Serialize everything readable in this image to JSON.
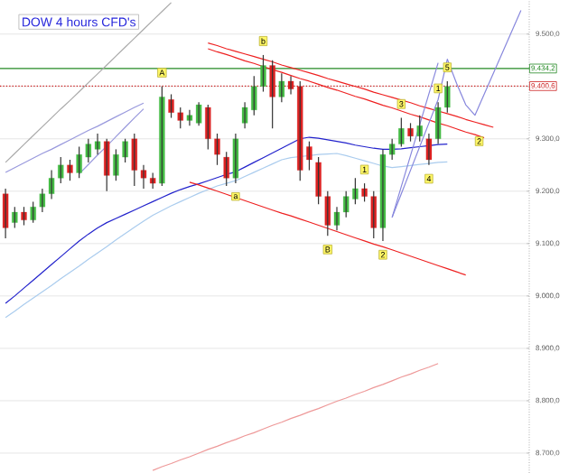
{
  "chart_data": {
    "type": "candlestick",
    "title": "DOW 4 hours CFD's",
    "categories": [
      null,
      null,
      null,
      null,
      null,
      null,
      null,
      null,
      null,
      null,
      null,
      null,
      null,
      null,
      null,
      null,
      null,
      null,
      null,
      null,
      null,
      null,
      null,
      null,
      null,
      null,
      null,
      null,
      null,
      null,
      null,
      null,
      null,
      null,
      null,
      null,
      null,
      null,
      null,
      null,
      null,
      null,
      null,
      null,
      null,
      null,
      null,
      null,
      null,
      null,
      null,
      null,
      null,
      null,
      null,
      null,
      null
    ],
    "ohlc": [
      [
        9195,
        9205,
        9110,
        9130
      ],
      [
        9140,
        9170,
        9130,
        9160
      ],
      [
        9160,
        9170,
        9135,
        9145
      ],
      [
        9145,
        9180,
        9140,
        9170
      ],
      [
        9170,
        9205,
        9160,
        9195
      ],
      [
        9195,
        9240,
        9185,
        9225
      ],
      [
        9225,
        9265,
        9215,
        9250
      ],
      [
        9250,
        9260,
        9220,
        9235
      ],
      [
        9235,
        9285,
        9225,
        9270
      ],
      [
        9265,
        9300,
        9255,
        9290
      ],
      [
        9280,
        9310,
        9270,
        9295
      ],
      [
        9295,
        9300,
        9200,
        9230
      ],
      [
        9230,
        9280,
        9220,
        9270
      ],
      [
        9265,
        9300,
        9255,
        9295
      ],
      [
        9300,
        9310,
        9210,
        9240
      ],
      [
        9240,
        9250,
        9205,
        9225
      ],
      [
        9225,
        9235,
        9205,
        9215
      ],
      [
        9215,
        9400,
        9210,
        9380
      ],
      [
        9375,
        9385,
        9340,
        9350
      ],
      [
        9350,
        9360,
        9320,
        9335
      ],
      [
        9335,
        9355,
        9325,
        9345
      ],
      [
        9330,
        9370,
        9325,
        9365
      ],
      [
        9360,
        9365,
        9280,
        9300
      ],
      [
        9300,
        9310,
        9250,
        9270
      ],
      [
        9265,
        9275,
        9210,
        9225
      ],
      [
        9225,
        9310,
        9215,
        9300
      ],
      [
        9330,
        9370,
        9320,
        9360
      ],
      [
        9355,
        9420,
        9345,
        9400
      ],
      [
        9400,
        9460,
        9390,
        9440
      ],
      [
        9440,
        9450,
        9320,
        9380
      ],
      [
        9380,
        9425,
        9370,
        9410
      ],
      [
        9410,
        9420,
        9385,
        9395
      ],
      [
        9400,
        9410,
        9220,
        9240
      ],
      [
        9285,
        9295,
        9240,
        9260
      ],
      [
        9255,
        9265,
        9175,
        9190
      ],
      [
        9190,
        9200,
        9115,
        9135
      ],
      [
        9135,
        9170,
        9125,
        9160
      ],
      [
        9160,
        9200,
        9150,
        9190
      ],
      [
        9185,
        9225,
        9175,
        9205
      ],
      [
        9205,
        9215,
        9180,
        9190
      ],
      [
        9190,
        9200,
        9110,
        9130
      ],
      [
        9130,
        9280,
        9105,
        9270
      ],
      [
        9270,
        9300,
        9260,
        9290
      ],
      [
        9290,
        9340,
        9285,
        9320
      ],
      [
        9320,
        9330,
        9295,
        9305
      ],
      [
        9305,
        9345,
        9295,
        9325
      ],
      [
        9300,
        9310,
        9250,
        9260
      ],
      [
        9300,
        9370,
        9290,
        9360
      ],
      [
        9360,
        9410,
        9350,
        9400
      ],
      null,
      null,
      null,
      null,
      null,
      null,
      null,
      null
    ],
    "series": [
      {
        "type": "line",
        "color": "#2222cc",
        "values": [
          8986,
          9000,
          9015,
          9030,
          9045,
          9060,
          9075,
          9090,
          9105,
          9118,
          9130,
          9140,
          9148,
          9156,
          9164,
          9172,
          9180,
          9188,
          9196,
          9203,
          9209,
          9214,
          9220,
          9226,
          9232,
          9237,
          9246,
          9255,
          9264,
          9273,
          9282,
          9291,
          9300,
          9303,
          9301,
          9298,
          9295,
          9292,
          9288,
          9285,
          9282,
          9280,
          9280,
          9281,
          9283,
          9285,
          9287,
          9289,
          9290,
          null,
          null,
          null,
          null,
          null,
          null,
          null,
          null
        ]
      },
      {
        "type": "line",
        "color": "#aaccee",
        "values": [
          8959,
          8971,
          8984,
          8996,
          9008,
          9020,
          9033,
          9045,
          9057,
          9070,
          9082,
          9094,
          9107,
          9119,
          9131,
          9143,
          9154,
          9163,
          9172,
          9180,
          9188,
          9196,
          9203,
          9210,
          9215,
          9220,
          9228,
          9236,
          9244,
          9252,
          9260,
          9264,
          9266,
          9268,
          9270,
          9271,
          9272,
          9268,
          9263,
          9258,
          9253,
          9248,
          9245,
          9247,
          9249,
          9251,
          9253,
          9255,
          9256,
          null,
          null,
          null,
          null,
          null,
          null,
          null,
          null
        ]
      },
      {
        "type": "line",
        "color": "#ee9999",
        "values": [
          null,
          null,
          null,
          null,
          null,
          null,
          null,
          null,
          null,
          null,
          null,
          null,
          null,
          null,
          null,
          null,
          8667,
          8674,
          8680,
          8687,
          8693,
          8700,
          8707,
          8713,
          8720,
          8726,
          8733,
          8739,
          8746,
          8753,
          8759,
          8766,
          8772,
          8779,
          8785,
          8792,
          8799,
          8805,
          8812,
          8818,
          8825,
          8831,
          8838,
          8845,
          8851,
          8858,
          8864,
          8871,
          null,
          null,
          null,
          null,
          null,
          null,
          null,
          null,
          null
        ]
      },
      {
        "type": "line",
        "color": "#ee2222",
        "values": [
          null,
          null,
          null,
          null,
          null,
          null,
          null,
          null,
          null,
          null,
          null,
          null,
          null,
          null,
          null,
          null,
          null,
          null,
          null,
          null,
          null,
          null,
          9483,
          9478,
          9472,
          9467,
          9462,
          9457,
          9452,
          9447,
          9441,
          9436,
          9431,
          9426,
          9421,
          9415,
          9410,
          9405,
          9400,
          9395,
          9389,
          9384,
          9379,
          9374,
          9369,
          9363,
          9358,
          9353,
          9348,
          9343,
          9337,
          9332,
          9327,
          9322,
          null,
          null,
          null
        ]
      },
      {
        "type": "line",
        "color": "#ee2222",
        "values": [
          null,
          null,
          null,
          null,
          null,
          null,
          null,
          null,
          null,
          null,
          null,
          null,
          null,
          null,
          null,
          null,
          null,
          null,
          null,
          null,
          null,
          null,
          9472,
          9466,
          9461,
          9455,
          9449,
          9444,
          9438,
          9432,
          9427,
          9421,
          9415,
          9410,
          9404,
          9398,
          9393,
          9387,
          9381,
          9376,
          9370,
          9364,
          9359,
          9353,
          9347,
          9342,
          9336,
          9330,
          9325,
          9319,
          9313,
          9308,
          9302,
          null,
          null,
          null,
          null
        ]
      },
      {
        "type": "line",
        "color": "#ee2222",
        "values": [
          null,
          null,
          null,
          null,
          null,
          null,
          null,
          null,
          null,
          null,
          null,
          null,
          null,
          null,
          null,
          null,
          null,
          null,
          null,
          null,
          9217,
          9212,
          9206,
          9200,
          9194,
          9188,
          9182,
          9176,
          9170,
          9164,
          9158,
          9153,
          9147,
          9141,
          9135,
          9129,
          9123,
          9117,
          9111,
          9105,
          9099,
          9094,
          9088,
          9082,
          9076,
          9070,
          9064,
          9058,
          9052,
          9046,
          9040,
          null,
          null,
          null,
          null,
          null,
          null
        ]
      },
      {
        "type": "line",
        "color": "#aaaaaa",
        "values": [
          9255,
          9272,
          9289,
          9306,
          9323,
          9340,
          9357,
          9373,
          9390,
          9407,
          9424,
          9441,
          9458,
          9475,
          9492,
          9509,
          9526,
          9543,
          9560,
          null,
          null,
          null,
          null,
          null,
          null,
          null,
          null,
          null,
          null,
          null,
          null,
          null,
          null,
          null,
          null,
          null,
          null,
          null,
          null,
          null,
          null,
          null,
          null,
          null,
          null,
          null,
          null,
          null,
          null,
          null,
          null,
          null,
          null,
          null,
          null,
          null,
          null
        ]
      },
      {
        "type": "line",
        "color": "#9999dd",
        "values": [
          9236,
          9245,
          9254,
          9263,
          9272,
          9280,
          9289,
          9298,
          9307,
          9316,
          9324,
          9333,
          9342,
          9351,
          9360,
          9368,
          null,
          null,
          null,
          null,
          null,
          null,
          null,
          null,
          null,
          null,
          null,
          null,
          null,
          null,
          null,
          null,
          null,
          null,
          null,
          null,
          null,
          null,
          null,
          null,
          null,
          null,
          null,
          null,
          null,
          null,
          null,
          null,
          null,
          null,
          null,
          null,
          null,
          null,
          null,
          null,
          null
        ]
      },
      {
        "type": "line",
        "color": "#9999dd",
        "values": [
          null,
          null,
          null,
          null,
          null,
          null,
          null,
          null,
          9233,
          9251,
          9269,
          9286,
          9304,
          9322,
          9340,
          9357,
          null,
          null,
          null,
          null,
          null,
          null,
          null,
          null,
          null,
          null,
          null,
          null,
          null,
          null,
          null,
          null,
          null,
          null,
          null,
          null,
          null,
          null,
          null,
          null,
          null,
          null,
          null,
          null,
          null,
          null,
          null,
          null,
          null,
          null,
          null,
          null,
          null,
          null,
          null,
          null,
          null
        ]
      },
      {
        "type": "line",
        "color": "#8888dd",
        "values": [
          null,
          null,
          null,
          null,
          null,
          null,
          null,
          null,
          null,
          null,
          null,
          null,
          null,
          null,
          null,
          null,
          null,
          null,
          null,
          null,
          null,
          null,
          null,
          null,
          null,
          null,
          null,
          null,
          null,
          null,
          null,
          null,
          null,
          null,
          null,
          null,
          null,
          null,
          null,
          null,
          null,
          null,
          9150,
          9209,
          9268,
          9327,
          9386,
          9445,
          null,
          null,
          null,
          null,
          null,
          null,
          null,
          null,
          null
        ],
        "value_labels": [
          null,
          null,
          null,
          null,
          null,
          null,
          null,
          null,
          null,
          null,
          null,
          null,
          null,
          null,
          null,
          null,
          null,
          null,
          null,
          null,
          null,
          null,
          null,
          null,
          null,
          null,
          null,
          null,
          null,
          null,
          null,
          null,
          null,
          null,
          null,
          null,
          null,
          null,
          null,
          null,
          null,
          null,
          null,
          null,
          null,
          null,
          null,
          null,
          null,
          null,
          null,
          null,
          null,
          null,
          null,
          null,
          null
        ]
      },
      {
        "type": "line",
        "color": "#8888dd",
        "values": [
          null,
          null,
          null,
          null,
          null,
          null,
          null,
          null,
          null,
          null,
          null,
          null,
          null,
          null,
          null,
          null,
          null,
          null,
          null,
          null,
          null,
          null,
          null,
          null,
          null,
          null,
          null,
          null,
          null,
          null,
          null,
          null,
          null,
          null,
          null,
          null,
          null,
          null,
          null,
          null,
          null,
          null,
          9150,
          9195,
          9240,
          9285,
          9330,
          9375,
          9452,
          9406,
          9365,
          9345,
          9385,
          9425,
          9465,
          9505,
          9545
        ],
        "value_labels": [
          null,
          null,
          null,
          null,
          null,
          null,
          null,
          null,
          null,
          null,
          null,
          null,
          null,
          null,
          null,
          null,
          null,
          null,
          null,
          null,
          null,
          null,
          null,
          null,
          null,
          null,
          null,
          null,
          null,
          null,
          null,
          null,
          null,
          null,
          null,
          null,
          null,
          null,
          null,
          null,
          null,
          null,
          null,
          null,
          null,
          null,
          null,
          null,
          null,
          null,
          null,
          null,
          null,
          null,
          null,
          null,
          null
        ]
      }
    ],
    "value_labels": [
      null,
      null,
      null,
      null,
      null,
      null,
      null,
      null,
      null,
      null,
      null,
      null,
      null,
      null,
      null,
      null,
      null,
      "A",
      null,
      null,
      null,
      null,
      null,
      null,
      null,
      "a",
      null,
      null,
      "b",
      null,
      null,
      null,
      null,
      null,
      null,
      "B",
      null,
      null,
      null,
      "1",
      null,
      "2",
      null,
      "3",
      null,
      null,
      "4",
      "1",
      "5",
      null,
      null,
      "2",
      null,
      null,
      null,
      null,
      null
    ],
    "ylim": [
      8662,
      9565
    ],
    "yticks": [
      {
        "value": 8700,
        "label": "8.700,0"
      },
      {
        "value": 8800,
        "label": "8.800,0"
      },
      {
        "value": 8900,
        "label": "8.900,0"
      },
      {
        "value": 9000,
        "label": "9.000,0"
      },
      {
        "value": 9100,
        "label": "9.100,0"
      },
      {
        "value": 9200,
        "label": "9.200,0"
      },
      {
        "value": 9300,
        "label": "9.300,0"
      },
      {
        "value": 9400,
        "label": null
      },
      {
        "value": 9500,
        "label": "9.500,0"
      }
    ],
    "grid": "y",
    "ref_lines": [
      {
        "axis": "y",
        "value": 9434.2,
        "label": "9.434,2",
        "color": "#228822",
        "line_style": "solid"
      },
      {
        "axis": "y",
        "value": 9400.6,
        "label": "9.400,6",
        "color": "#cc2222",
        "line_style": "dotted"
      }
    ]
  }
}
